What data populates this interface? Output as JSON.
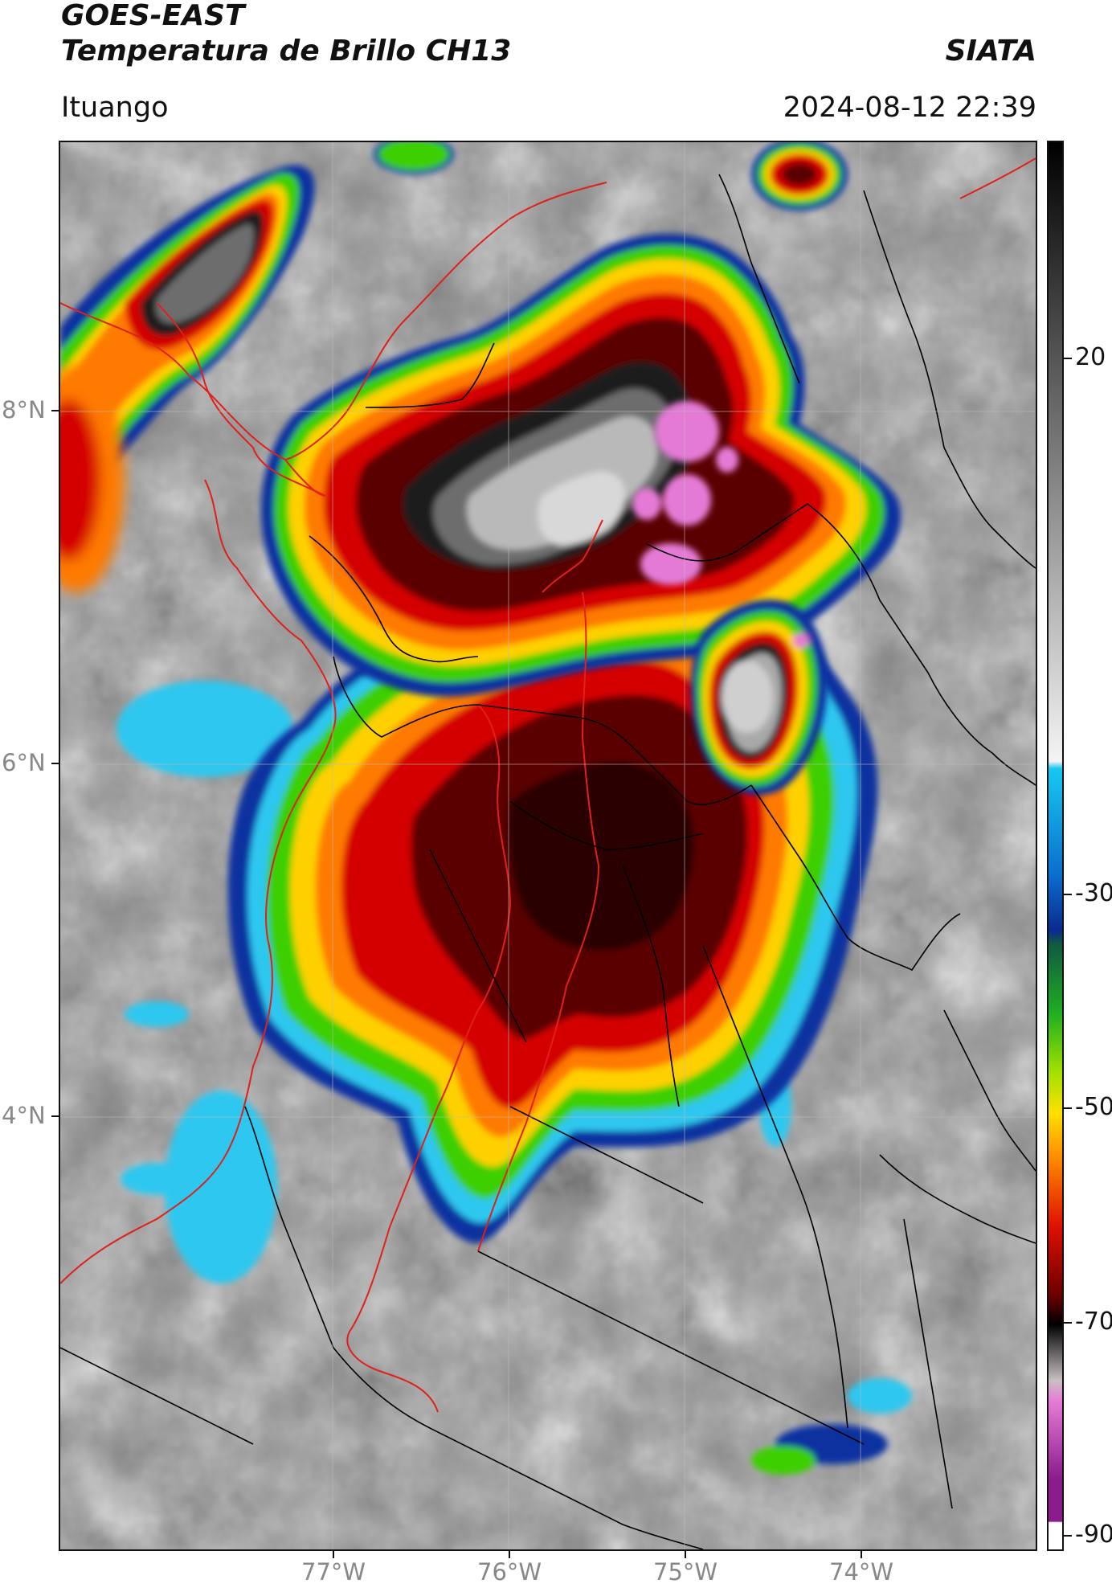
{
  "header": {
    "satellite": "GOES-EAST",
    "product": "Temperatura de Brillo CH13",
    "agency": "SIATA",
    "location": "Ituango",
    "timestamp": "2024-08-12 22:39"
  },
  "axes": {
    "lat_labels": [
      "8°N",
      "6°N",
      "4°N"
    ],
    "lon_labels": [
      "77°W",
      "76°W",
      "75°W",
      "74°W"
    ]
  },
  "colorbar": {
    "labels": [
      "20",
      "-30",
      "-50",
      "-70",
      "-90"
    ]
  },
  "colors": {
    "pink": "#e57ad6",
    "light_gray": "#d8d8d8",
    "dark": "#1a1a1a",
    "dark_red": "#5a0000",
    "red": "#d40000",
    "orange": "#ff7a00",
    "yellow": "#ffd000",
    "green": "#3ccf00",
    "dark_blue": "#1030a0",
    "cyan": "#2ec7ef",
    "background_gray": "#8c8c8c",
    "boundary_red": "#e0201a",
    "boundary_black": "#000000"
  }
}
